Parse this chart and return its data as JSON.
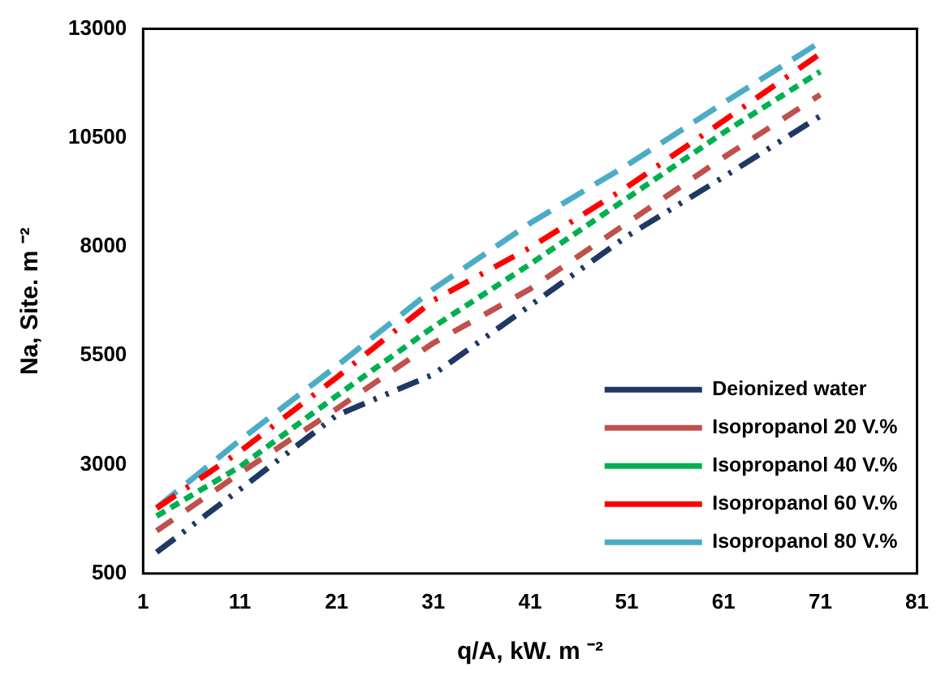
{
  "chart_data": {
    "type": "line",
    "xlabel": "q/A, kW. m ⁻²",
    "ylabel": "Na, Site. m ⁻²",
    "x": [
      2.4,
      11,
      21,
      31,
      41,
      51,
      61,
      71
    ],
    "series": [
      {
        "name": "Deionized water",
        "color": "#1f3864",
        "line_style": "dashed",
        "values": [
          990,
          2430,
          4130,
          5070,
          6650,
          8240,
          9600,
          11000
        ]
      },
      {
        "name": "Isopropanol 20 V.%",
        "color": "#c0504d",
        "line_style": "dashed",
        "values": [
          1480,
          2800,
          4280,
          5790,
          7030,
          8540,
          10050,
          11490
        ]
      },
      {
        "name": "Isopropanol 40 V.%",
        "color": "#00b050",
        "line_style": "dashed",
        "values": [
          1820,
          2950,
          4580,
          6160,
          7600,
          9110,
          10620,
          12020
        ]
      },
      {
        "name": "Isopropanol 60 V.%",
        "color": "#ff0000",
        "line_style": "dashed",
        "values": [
          2000,
          3300,
          5000,
          6770,
          7980,
          9370,
          10890,
          12430
        ]
      },
      {
        "name": "Isopropanol 80 V.%",
        "color": "#4bacc6",
        "line_style": "dashed",
        "values": [
          2010,
          3560,
          5260,
          7030,
          8540,
          9870,
          11300,
          12700
        ]
      }
    ],
    "xlim": [
      1,
      81
    ],
    "xticks": [
      1,
      11,
      21,
      31,
      41,
      51,
      61,
      71,
      81
    ],
    "ylim": [
      500,
      13000
    ],
    "yticks": [
      500,
      3000,
      5500,
      8000,
      10500,
      13000
    ],
    "grid": false,
    "legend": "bottom right",
    "marker": "none"
  }
}
